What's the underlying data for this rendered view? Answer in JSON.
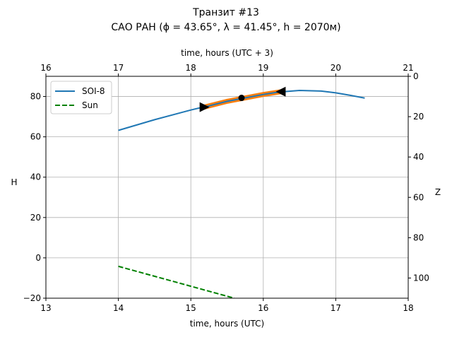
{
  "chart_data": {
    "type": "line",
    "title": "Транзит #13",
    "subtitle": "САО РАН (ϕ = 43.65°, λ = 41.45°, h = 2070м)",
    "xlabel": "time, hours (UTC)",
    "x2label": "time, hours (UTC + 3)",
    "ylabel": "H",
    "y2label": "Z",
    "xlim": [
      13,
      18
    ],
    "x2lim": [
      16,
      21
    ],
    "ylim": [
      -20,
      90
    ],
    "y2lim": [
      110,
      0
    ],
    "xticks": [
      "13",
      "14",
      "15",
      "16",
      "17",
      "18"
    ],
    "x2ticks": [
      "16",
      "17",
      "18",
      "19",
      "20",
      "21"
    ],
    "yticks": [
      "−20",
      "0",
      "20",
      "40",
      "60",
      "80"
    ],
    "y2ticks": [
      "0",
      "20",
      "40",
      "60",
      "80",
      "100"
    ],
    "grid": true,
    "legend_position": "top-left",
    "series": [
      {
        "name": "SOI-8",
        "color": "#1f77b4",
        "style": "solid",
        "x": [
          14,
          14.5,
          15,
          15.5,
          16,
          16.25,
          16.5,
          16.8,
          17,
          17.2,
          17.4
        ],
        "y": [
          63.2,
          68.5,
          73.3,
          77.6,
          81.0,
          82.3,
          83.0,
          82.7,
          81.8,
          80.6,
          79.2
        ]
      },
      {
        "name": "Sun",
        "color": "#008000",
        "style": "dashed",
        "x": [
          14,
          15.6
        ],
        "y": [
          -4.2,
          -20
        ]
      }
    ],
    "transit": {
      "color": "#ff7f0e",
      "start": [
        15.18,
        74.7
      ],
      "middle": [
        15.7,
        79.3
      ],
      "end": [
        16.25,
        82.4
      ]
    }
  }
}
